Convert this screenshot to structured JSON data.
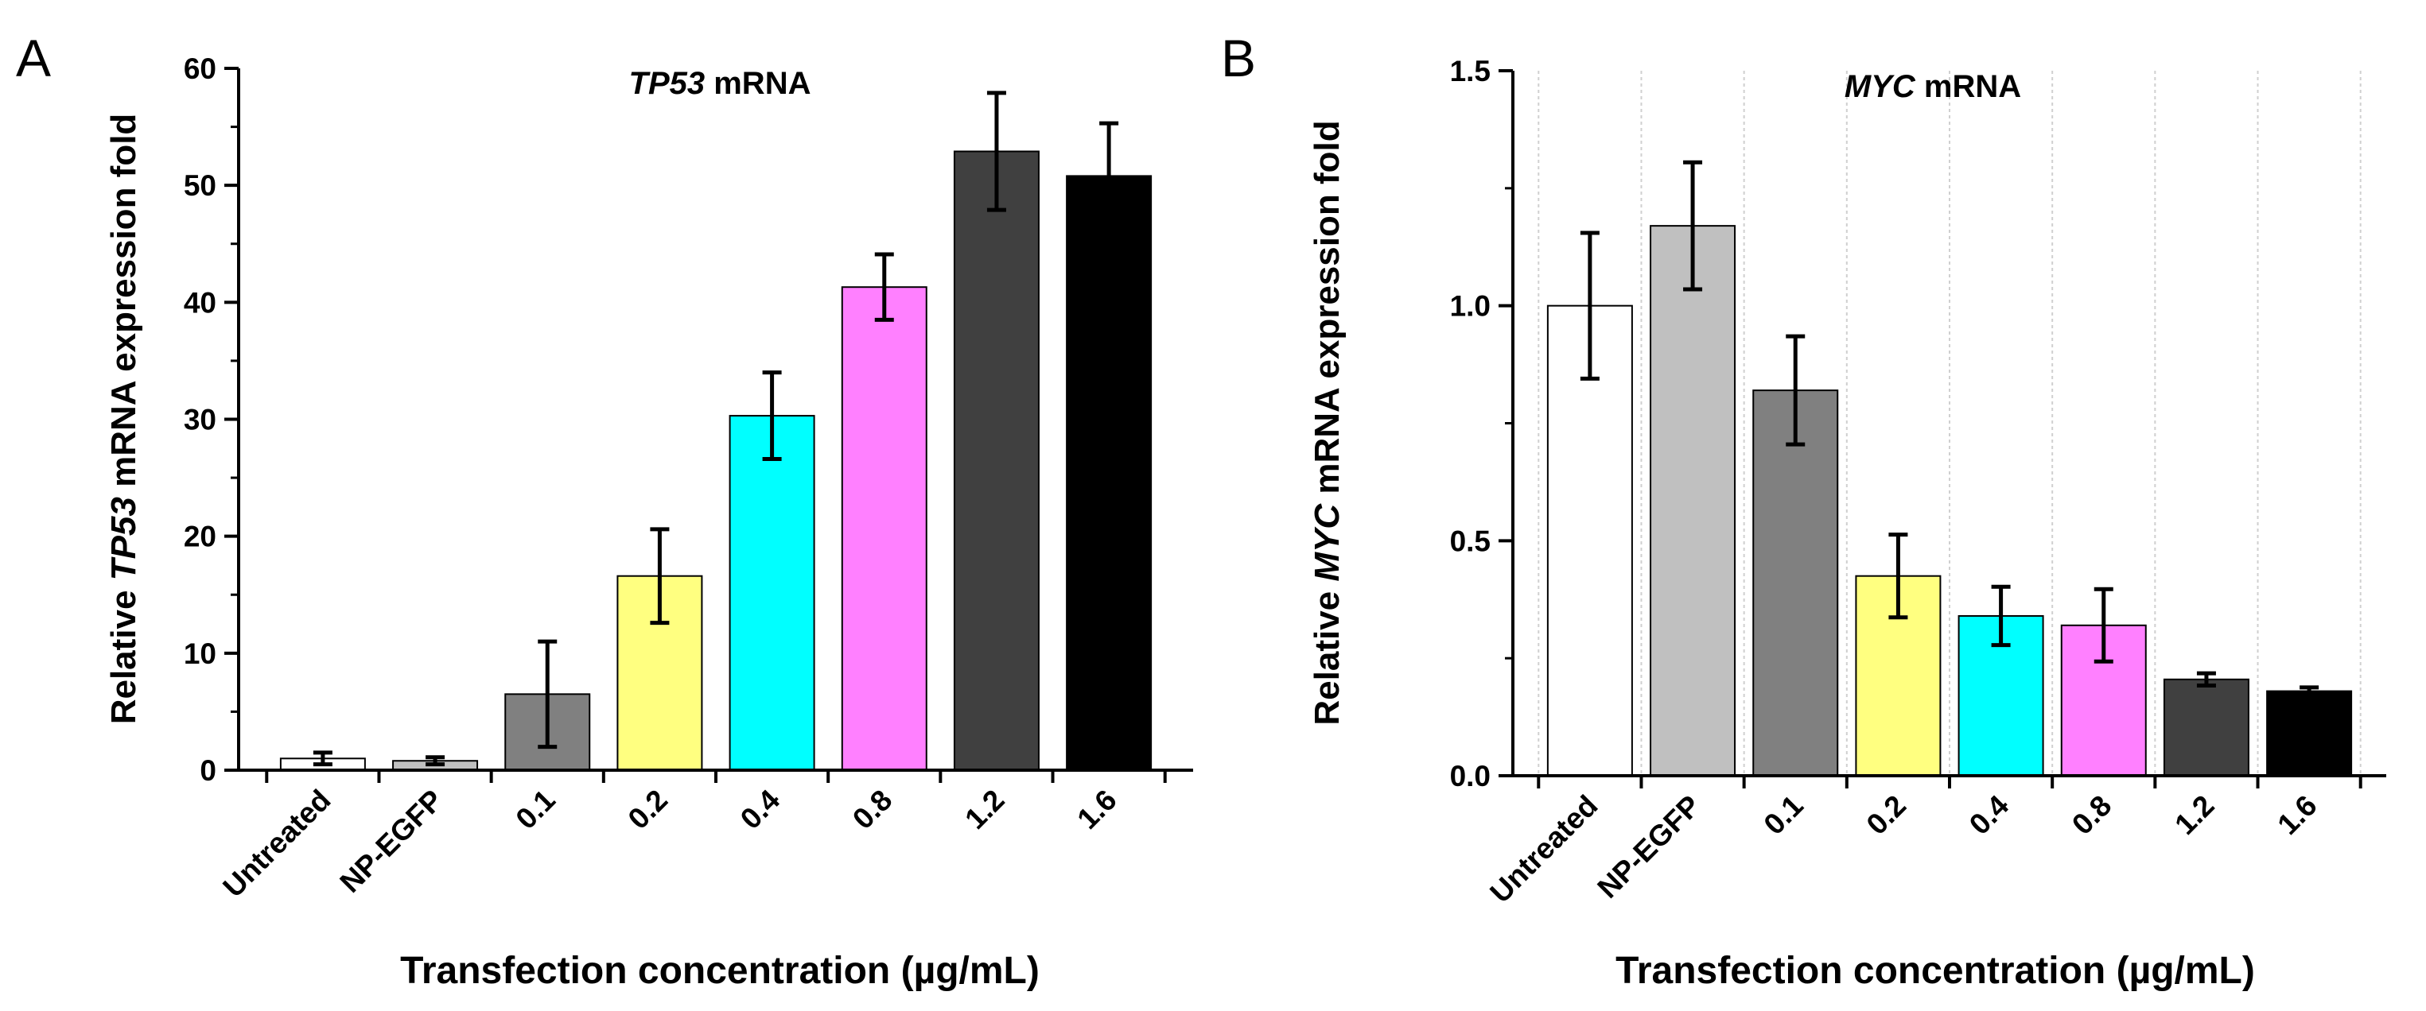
{
  "chart_data": [
    {
      "type": "bar",
      "panel_label": "A",
      "title_italic": "TP53",
      "title_rest": " mRNA",
      "ylabel_pre": "Relative ",
      "ylabel_italic": "TP53",
      "ylabel_post": " mRNA expression fold",
      "xlabel": "Transfection concentration (µg/mL)",
      "categories": [
        "Untreated",
        "NP-EGFP",
        "0.1",
        "0.2",
        "0.4",
        "0.8",
        "1.2",
        "1.6"
      ],
      "values": [
        1.0,
        0.8,
        6.5,
        16.6,
        30.3,
        41.3,
        52.9,
        50.8
      ],
      "errors": [
        0.5,
        0.3,
        4.5,
        4.0,
        3.7,
        2.8,
        5.0,
        4.5
      ],
      "colors": [
        "#ffffff",
        "#c0c0c0",
        "#808080",
        "#ffff80",
        "#00ffff",
        "#ff80ff",
        "#404040",
        "#000000"
      ],
      "ylim": [
        0,
        60
      ],
      "yticks": [
        "0",
        "10",
        "20",
        "30",
        "40",
        "50",
        "60"
      ],
      "ytick_values": [
        0,
        10,
        20,
        30,
        40,
        50,
        60
      ],
      "grid": false
    },
    {
      "type": "bar",
      "panel_label": "B",
      "title_italic": "MYC",
      "title_rest": " mRNA",
      "ylabel_pre": "Relative ",
      "ylabel_italic": "MYC",
      "ylabel_post": " mRNA expression fold",
      "xlabel": "Transfection concentration (µg/mL)",
      "categories": [
        "Untreated",
        "NP-EGFP",
        "0.1",
        "0.2",
        "0.4",
        "0.8",
        "1.2",
        "1.6"
      ],
      "values": [
        1.0,
        1.17,
        0.82,
        0.425,
        0.34,
        0.32,
        0.205,
        0.18
      ],
      "errors": [
        0.155,
        0.135,
        0.115,
        0.088,
        0.062,
        0.077,
        0.013,
        0.008
      ],
      "colors": [
        "#ffffff",
        "#c0c0c0",
        "#808080",
        "#ffff80",
        "#00ffff",
        "#ff80ff",
        "#404040",
        "#000000"
      ],
      "ylim": [
        0,
        1.5
      ],
      "yticks": [
        "0.0",
        "0.5",
        "1.0",
        "1.5"
      ],
      "ytick_values": [
        0,
        0.5,
        1.0,
        1.5
      ],
      "grid": true
    }
  ]
}
